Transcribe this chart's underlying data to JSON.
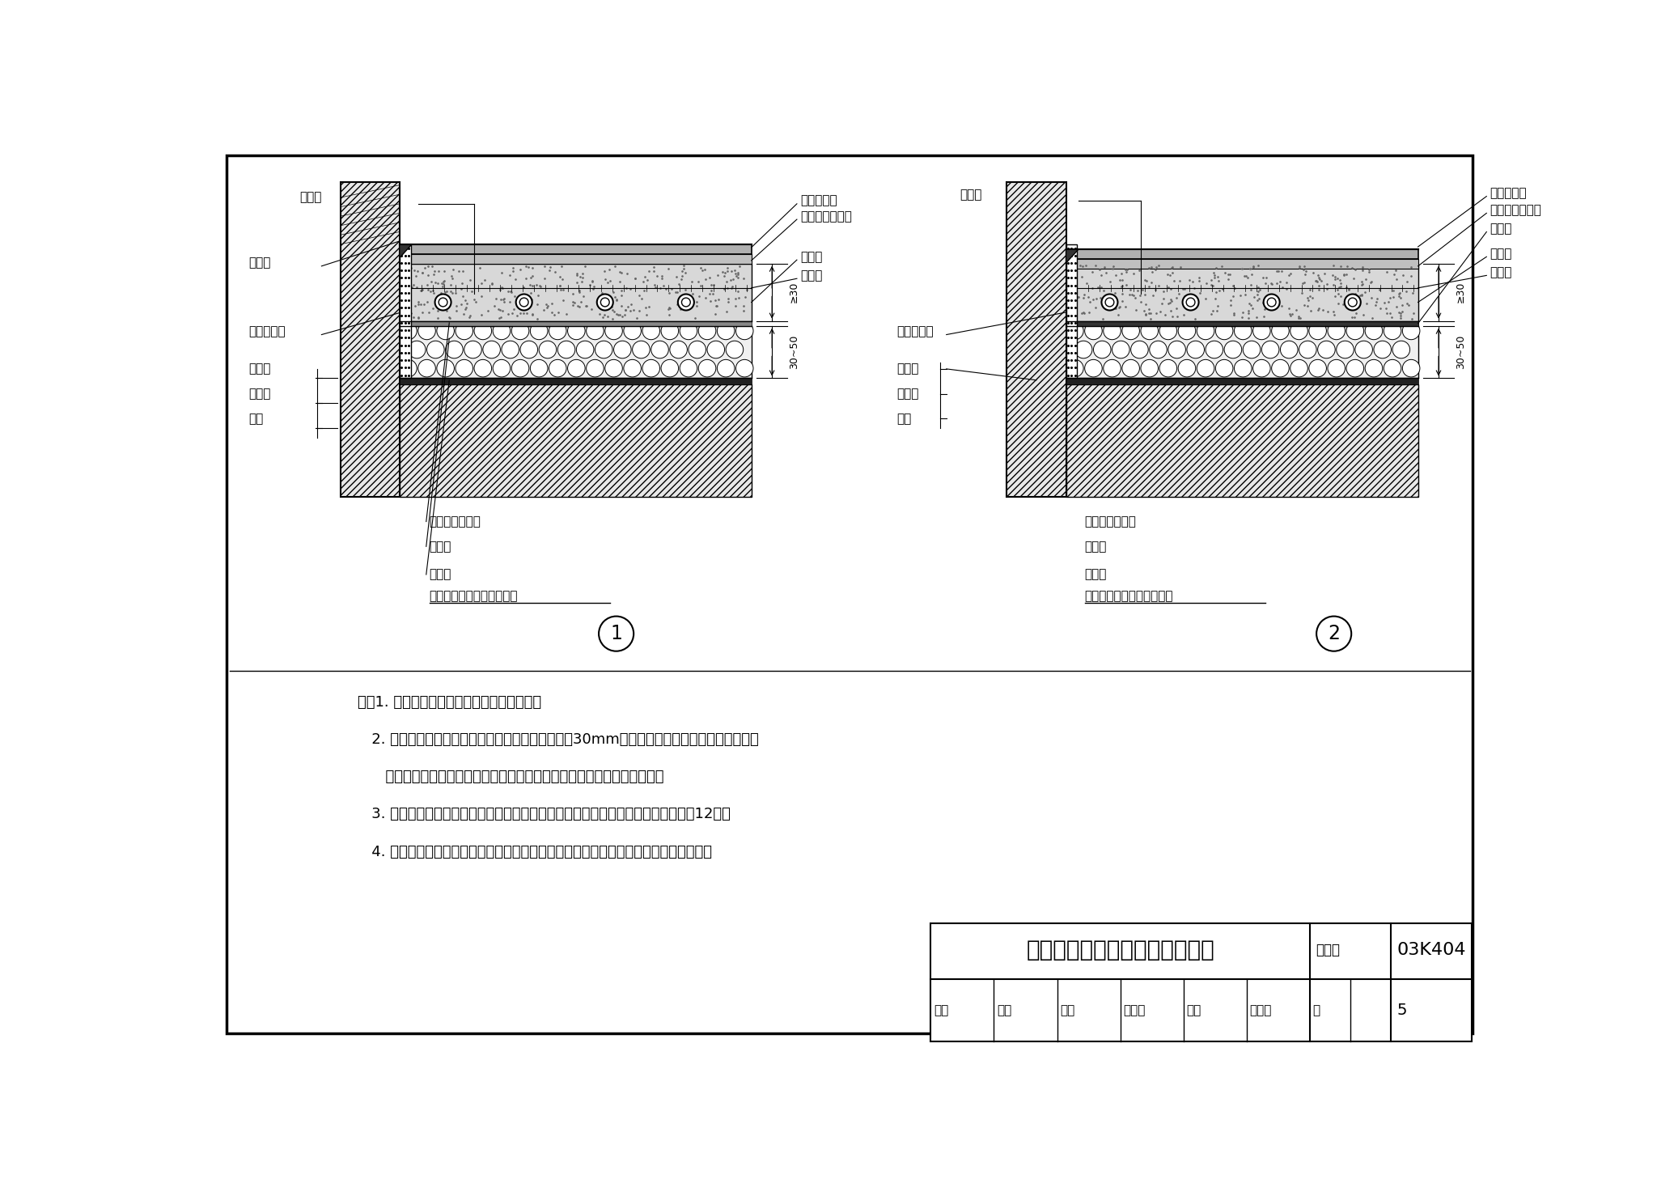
{
  "title": "低温热水地板辐射供暖地面做法",
  "page_num": "5",
  "atlas_num": "03K404",
  "bg_color": "#ffffff",
  "notes": [
    "注：1. 绝热层厚度应根据所需热阻计算确定。",
    "   2. 现浇层：应保证塑料管顶上的混凝土厚度不小于30mm，现浇层浇捣时，压实、抹平即可；",
    "      养护见本图集施工说明；浇捣和养护过程中，塑料管内应保持试验压力。",
    "   3. 本页所示塑料管固定方式为用扎带绑扎在钢丝网上，也可采用其他方式，详见第12页。",
    "   4. 卫生间等如设置塑料管供暖应按右图所示增加防水层，防水层上翻高度按土建要求。"
  ],
  "diagram1_label": "1",
  "diagram2_label": "2",
  "title_main": "低温热水地板辐射供暖地面做法",
  "atlas_label": "图集号",
  "footer_review": "审核",
  "footer_check": "校对",
  "footer_design": "设计",
  "footer_page_label": "页"
}
